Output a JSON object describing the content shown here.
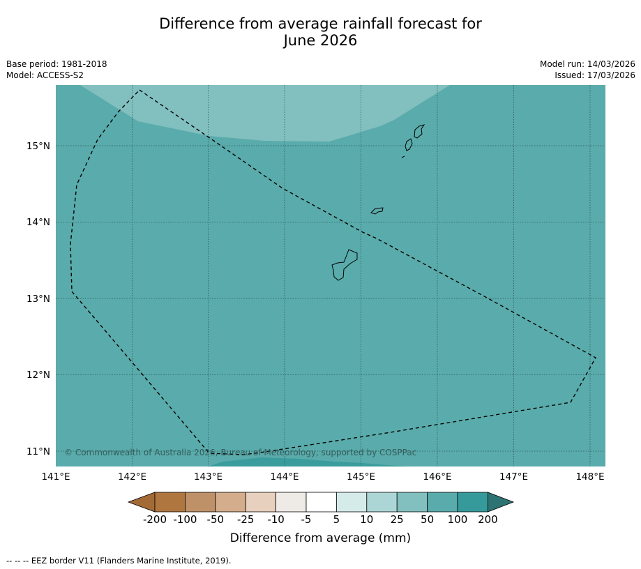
{
  "header": {
    "title_line1": "Difference from average rainfall forecast for",
    "title_line2": "June 2026",
    "base_period": "Base period: 1981-2018",
    "model": "Model: ACCESS-S2",
    "model_run": "Model run: 14/03/2026",
    "issued": "Issued: 17/03/2026"
  },
  "map": {
    "lon_ticks": [
      "141°E",
      "142°E",
      "143°E",
      "144°E",
      "145°E",
      "146°E",
      "147°E",
      "148°E"
    ],
    "lat_ticks": [
      "15°N",
      "14°N",
      "13°N",
      "12°N",
      "11°N"
    ],
    "copyright": "© Commonwealth of Australia 2026, Bureau of Meteorology, supported by COSPPac",
    "colors": {
      "base_fill": "#5aabab",
      "lighter_fill": "#82bfbf",
      "darker_fill": "#3a9c9c",
      "line": "#000000"
    }
  },
  "colorbar": {
    "labels": [
      "-200",
      "-100",
      "-50",
      "-25",
      "-10",
      "-5",
      "5",
      "10",
      "25",
      "50",
      "100",
      "200"
    ],
    "colors": [
      "#a46a36",
      "#b07640",
      "#bf9168",
      "#d3ad8c",
      "#e7d0bd",
      "#eeeae6",
      "#ffffff",
      "#d4ebea",
      "#acd6d5",
      "#82bfbf",
      "#5aabab",
      "#359a99",
      "#2e7373"
    ],
    "title": "Difference from average (mm)"
  },
  "footer": {
    "legend_line": "--  --  -- EEZ border V11 (Flanders Marine Institute, 2019)."
  }
}
